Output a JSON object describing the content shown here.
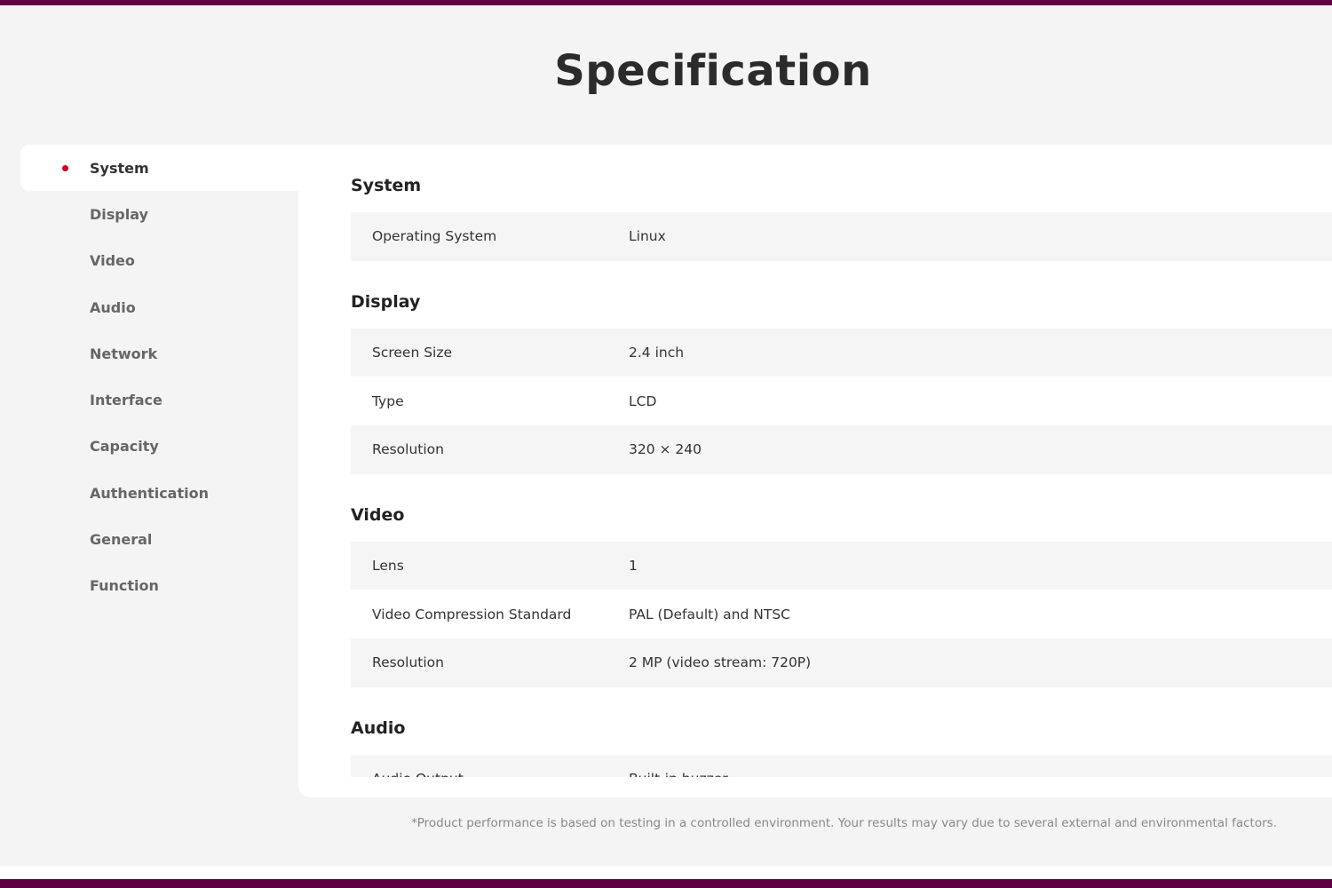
{
  "page_title": "Specification",
  "sidebar": {
    "active": "System",
    "items": [
      {
        "label": "System"
      },
      {
        "label": "Display"
      },
      {
        "label": "Video"
      },
      {
        "label": "Audio"
      },
      {
        "label": "Network"
      },
      {
        "label": "Interface"
      },
      {
        "label": "Capacity"
      },
      {
        "label": "Authentication"
      },
      {
        "label": "General"
      },
      {
        "label": "Function"
      }
    ]
  },
  "sections": [
    {
      "title": "System",
      "rows": [
        {
          "k": "Operating System",
          "v": "Linux"
        }
      ]
    },
    {
      "title": "Display",
      "rows": [
        {
          "k": "Screen Size",
          "v": "2.4 inch"
        },
        {
          "k": "Type",
          "v": "LCD"
        },
        {
          "k": "Resolution",
          "v": "320 × 240"
        }
      ]
    },
    {
      "title": "Video",
      "rows": [
        {
          "k": "Lens",
          "v": "1"
        },
        {
          "k": "Video Compression Standard",
          "v": "PAL (Default) and NTSC"
        },
        {
          "k": "Resolution",
          "v": "2 MP (video stream: 720P)"
        }
      ]
    },
    {
      "title": "Audio",
      "rows": [
        {
          "k": "Audio Output",
          "v": "Built-in buzzer"
        }
      ]
    }
  ],
  "footnote": "*Product performance is based on testing in a controlled environment. Your results may vary due to several external and environmental factors.",
  "colors": {
    "brand": "#5e0042",
    "active_dot": "#d0021b"
  }
}
